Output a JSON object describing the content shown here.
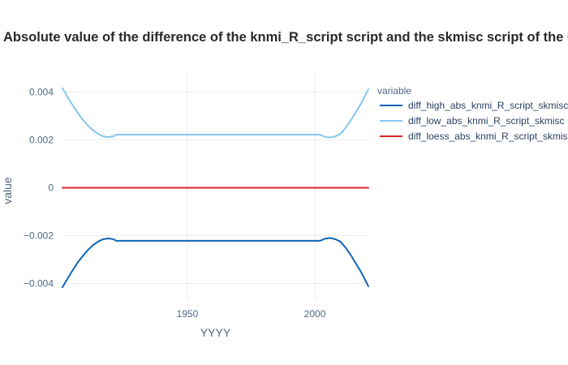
{
  "chart_data": {
    "type": "line",
    "title": "Absolute value of the difference of the knmi_R_script script and the skmisc script of the CI-",
    "xlabel": "YYYY",
    "ylabel": "value",
    "xlim": [
      1901,
      2021
    ],
    "ylim": [
      -0.0047,
      0.0048
    ],
    "x_ticks": [
      1950,
      2000
    ],
    "y_ticks": [
      {
        "v": 0.004,
        "label": "0.004"
      },
      {
        "v": 0.002,
        "label": "0.002"
      },
      {
        "v": 0,
        "label": "0"
      },
      {
        "v": -0.002,
        "label": "−0.002"
      },
      {
        "v": -0.004,
        "label": "−0.004"
      }
    ],
    "grid": true,
    "legend": {
      "title": "variable",
      "placement": "right"
    },
    "series": [
      {
        "name": "diff_high_abs_knmi_R_script_skmisc",
        "color": "#0d66b8",
        "points": [
          [
            1901,
            -0.00416
          ],
          [
            1903,
            -0.0038
          ],
          [
            1905,
            -0.00345
          ],
          [
            1907,
            -0.00312
          ],
          [
            1909,
            -0.00285
          ],
          [
            1911,
            -0.0026
          ],
          [
            1913,
            -0.0024
          ],
          [
            1915,
            -0.00225
          ],
          [
            1917,
            -0.00215
          ],
          [
            1919,
            -0.00212
          ],
          [
            1921,
            -0.00215
          ],
          [
            1922,
            -0.00222
          ],
          [
            1930,
            -0.00222
          ],
          [
            1950,
            -0.00222
          ],
          [
            1970,
            -0.00222
          ],
          [
            1990,
            -0.00222
          ],
          [
            2002,
            -0.00222
          ],
          [
            2004,
            -0.00213
          ],
          [
            2006,
            -0.0021
          ],
          [
            2008,
            -0.00215
          ],
          [
            2010,
            -0.00225
          ],
          [
            2012,
            -0.0025
          ],
          [
            2014,
            -0.0028
          ],
          [
            2016,
            -0.00315
          ],
          [
            2018,
            -0.0035
          ],
          [
            2021,
            -0.00412
          ]
        ]
      },
      {
        "name": "diff_low_abs_knmi_R_script_skmisc",
        "color": "#85c6f0",
        "points": [
          [
            1901,
            0.00416
          ],
          [
            1903,
            0.0038
          ],
          [
            1905,
            0.00345
          ],
          [
            1907,
            0.00312
          ],
          [
            1909,
            0.00285
          ],
          [
            1911,
            0.0026
          ],
          [
            1913,
            0.0024
          ],
          [
            1915,
            0.00225
          ],
          [
            1917,
            0.00215
          ],
          [
            1919,
            0.00212
          ],
          [
            1921,
            0.00215
          ],
          [
            1922,
            0.00222
          ],
          [
            1930,
            0.00222
          ],
          [
            1950,
            0.00222
          ],
          [
            1970,
            0.00222
          ],
          [
            1990,
            0.00222
          ],
          [
            2002,
            0.00222
          ],
          [
            2004,
            0.00213
          ],
          [
            2006,
            0.0021
          ],
          [
            2008,
            0.00215
          ],
          [
            2010,
            0.00225
          ],
          [
            2012,
            0.0025
          ],
          [
            2014,
            0.0028
          ],
          [
            2016,
            0.00315
          ],
          [
            2018,
            0.0035
          ],
          [
            2021,
            0.00412
          ]
        ]
      },
      {
        "name": "diff_loess_abs_knmi_R_script_skmisc",
        "color": "#d62728",
        "points": [
          [
            1901,
            0
          ],
          [
            2021,
            0
          ]
        ]
      }
    ]
  }
}
